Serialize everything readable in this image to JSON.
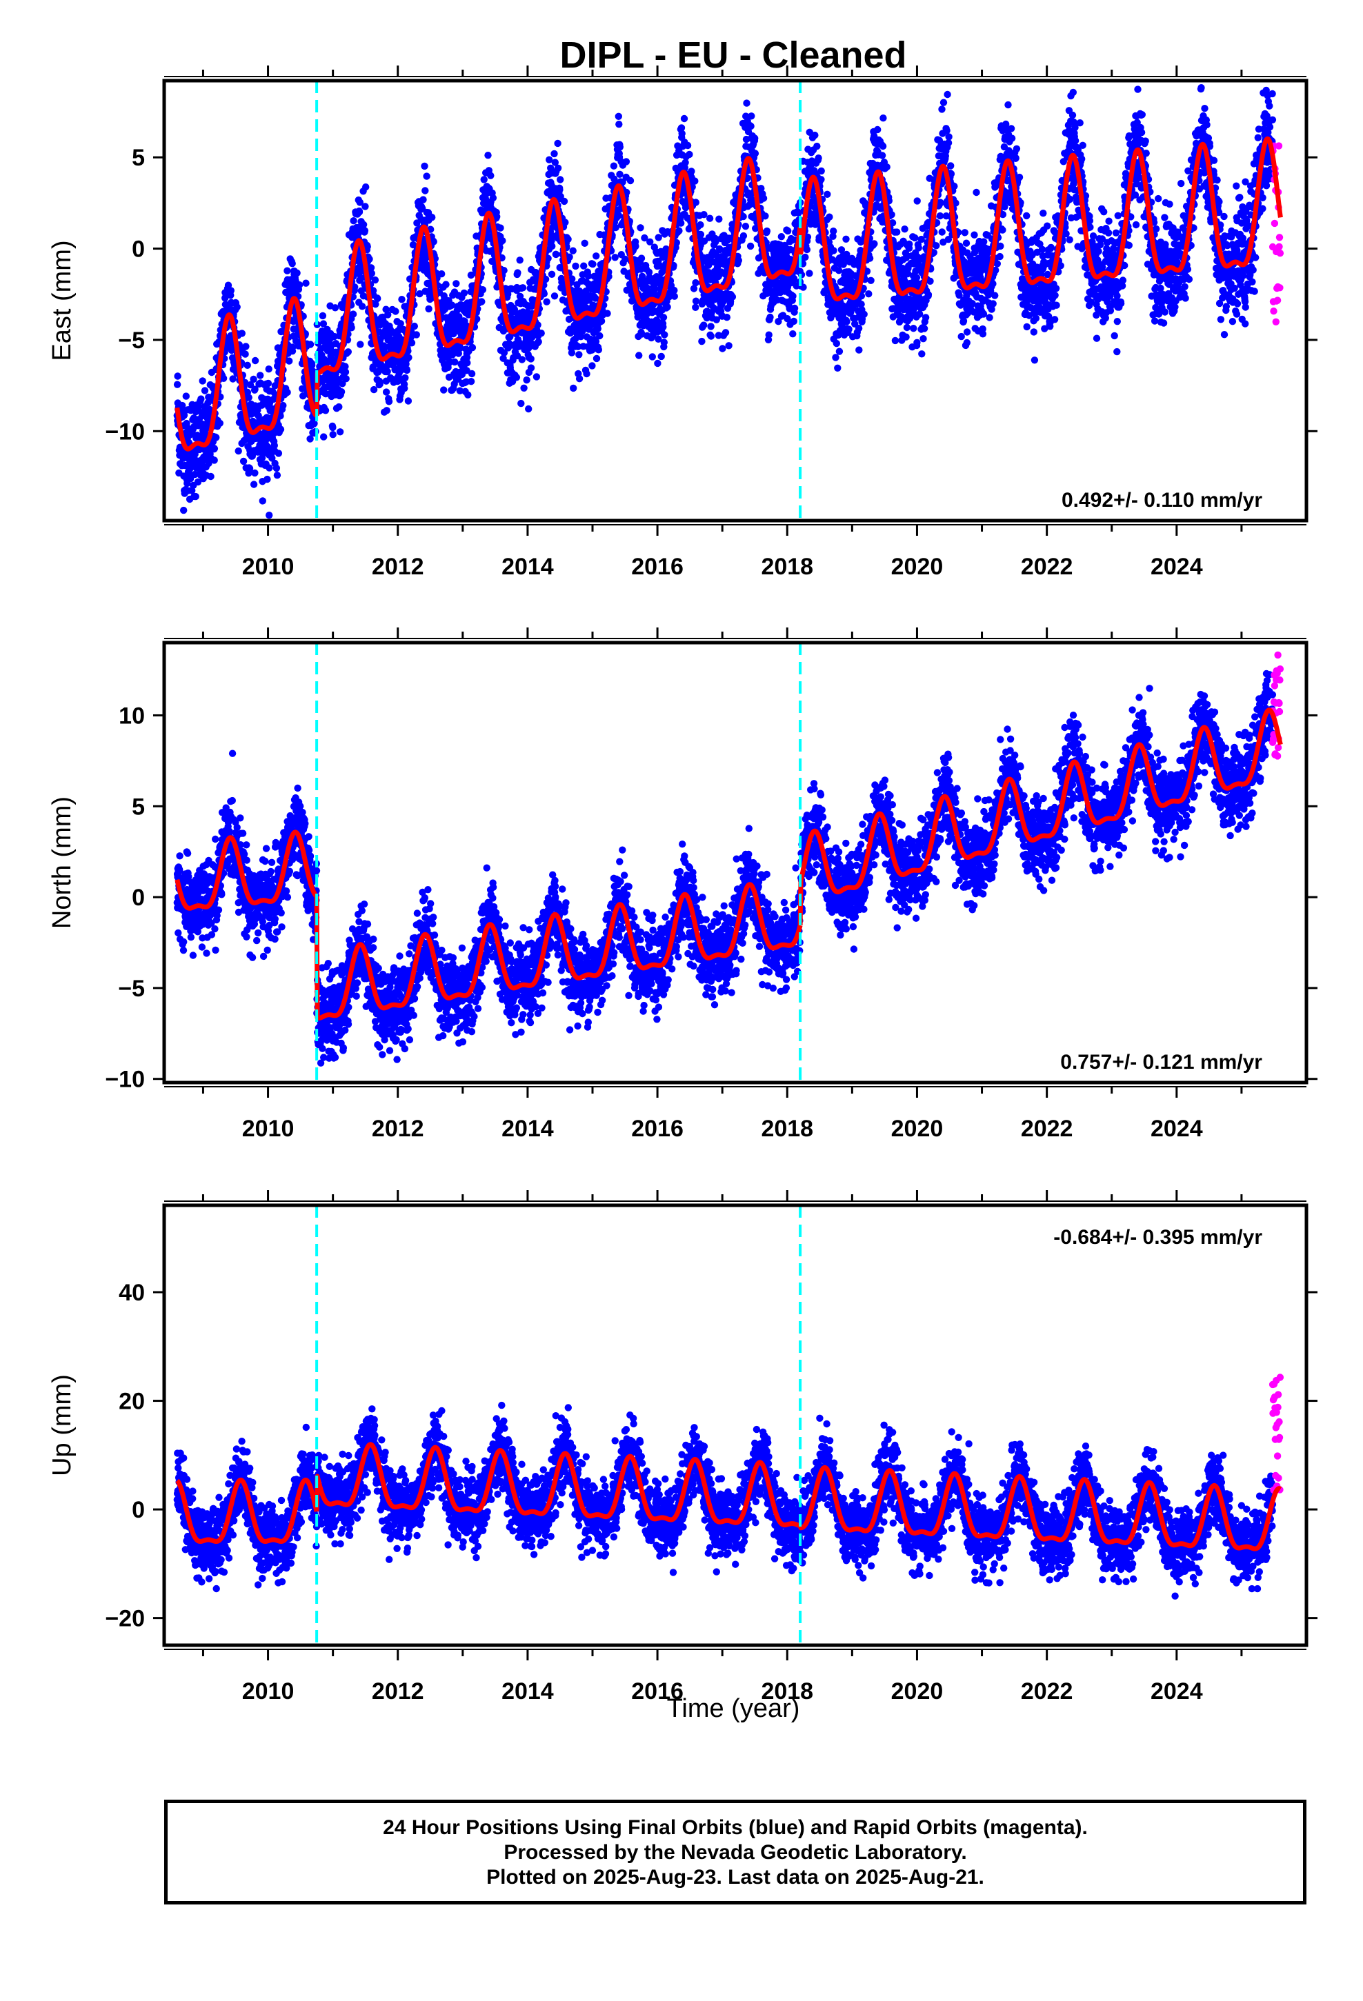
{
  "chart_data": {
    "type": "scatter",
    "title": "DIPL  - EU - Cleaned",
    "x_label": "Time (year)",
    "x_ticks": [
      "2010",
      "2012",
      "2014",
      "2016",
      "2018",
      "2020",
      "2022",
      "2024"
    ],
    "xlim": [
      2008.4,
      2026.0
    ],
    "offsets": [
      2010.75,
      2018.2
    ],
    "colors": {
      "final_orbits": "#0000ff",
      "rapid_orbits": "#ff00ff",
      "model_fit": "#ff0000",
      "offset_lines": "#00ffff",
      "frame": "#000000"
    },
    "panels": [
      {
        "id": "east",
        "ylabel": "East (mm)",
        "ylim": [
          -14.9,
          9.2
        ],
        "yticks": [
          -10,
          -5,
          0,
          5
        ],
        "ytick_labels": [
          "−10",
          "−5",
          "0",
          "5"
        ],
        "rate": "0.492+/- 0.110 mm/yr",
        "rate_position": "bottom-right",
        "fit_segments": [
          {
            "start": 2008.6,
            "end": 2010.75,
            "base": -8.8,
            "trend": 0.9,
            "amp": 3.3,
            "phase": 0.4
          },
          {
            "start": 2010.75,
            "end": 2018.2,
            "base": -4.5,
            "trend": 0.75,
            "amp": 3.3,
            "phase": 0.4
          },
          {
            "start": 2018.2,
            "end": 2025.6,
            "base": -0.6,
            "trend": 0.3,
            "amp": 3.3,
            "phase": 0.4
          }
        ],
        "scatter": 1.4,
        "rapid_range": [
          -4.2,
          5.8
        ]
      },
      {
        "id": "north",
        "ylabel": "North (mm)",
        "ylim": [
          -10.2,
          14.0
        ],
        "yticks": [
          -10,
          -5,
          0,
          5,
          10
        ],
        "ytick_labels": [
          "−10",
          "−5",
          "0",
          "5",
          "10"
        ],
        "rate": "0.757+/- 0.121 mm/yr",
        "rate_position": "bottom-right",
        "fit_segments": [
          {
            "start": 2008.6,
            "end": 2010.75,
            "base": 0.6,
            "trend": 0.3,
            "amp": 1.8,
            "phase": 0.42
          },
          {
            "start": 2010.75,
            "end": 2018.2,
            "base": -5.4,
            "trend": 0.55,
            "amp": 1.8,
            "phase": 0.42
          },
          {
            "start": 2018.2,
            "end": 2025.6,
            "base": 1.0,
            "trend": 0.95,
            "amp": 1.8,
            "phase": 0.42
          }
        ],
        "scatter": 1.1,
        "rapid_range": [
          7.5,
          13.5
        ]
      },
      {
        "id": "up",
        "ylabel": "Up (mm)",
        "ylim": [
          -25,
          56
        ],
        "yticks": [
          -20,
          0,
          20,
          40
        ],
        "ytick_labels": [
          "−20",
          "0",
          "20",
          "40"
        ],
        "rate": "-0.684+/- 0.395 mm/yr",
        "rate_position": "top-right",
        "fit_segments": [
          {
            "start": 2008.6,
            "end": 2010.75,
            "base": -2.0,
            "trend": 0.0,
            "amp": 5.5,
            "phase": 0.58
          },
          {
            "start": 2010.75,
            "end": 2018.2,
            "base": 5.0,
            "trend": -0.55,
            "amp": 5.5,
            "phase": 0.58
          },
          {
            "start": 2018.2,
            "end": 2025.6,
            "base": 0.5,
            "trend": -0.55,
            "amp": 5.5,
            "phase": 0.58
          }
        ],
        "scatter": 3.2,
        "rapid_range": [
          3.0,
          25.0
        ]
      }
    ]
  },
  "footer": {
    "line1": "24 Hour Positions Using Final Orbits (blue) and Rapid Orbits (magenta).",
    "line2": "Processed by the Nevada Geodetic Laboratory.",
    "line3": "Plotted on 2025-Aug-23. Last data on 2025-Aug-21."
  }
}
